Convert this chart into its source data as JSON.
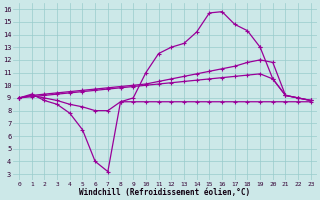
{
  "xlabel": "Windchill (Refroidissement éolien,°C)",
  "background_color": "#cce8e8",
  "grid_color": "#99cccc",
  "line_color": "#990099",
  "x_values": [
    0,
    1,
    2,
    3,
    4,
    5,
    6,
    7,
    8,
    9,
    10,
    11,
    12,
    13,
    14,
    15,
    16,
    17,
    18,
    19,
    20,
    21,
    22,
    23
  ],
  "line_dip_y": [
    9.0,
    9.3,
    8.8,
    8.5,
    7.8,
    6.5,
    4.0,
    3.2,
    8.7,
    8.7,
    8.7,
    8.7,
    8.7,
    8.7,
    8.7,
    8.7,
    8.7,
    8.7,
    8.7,
    8.7,
    8.7,
    8.7,
    8.7,
    8.7
  ],
  "line_peak_y": [
    9.0,
    9.2,
    9.0,
    8.8,
    8.5,
    8.3,
    8.0,
    8.0,
    8.7,
    9.0,
    11.0,
    12.5,
    13.0,
    13.3,
    14.2,
    15.7,
    15.8,
    14.8,
    14.3,
    13.0,
    null,
    null,
    null,
    null
  ],
  "line_mid_y": [
    9.0,
    9.2,
    9.3,
    9.4,
    9.5,
    9.6,
    9.7,
    9.8,
    9.9,
    10.0,
    10.1,
    10.3,
    10.5,
    10.7,
    10.9,
    11.1,
    11.3,
    11.5,
    11.8,
    12.0,
    null,
    null,
    null,
    null
  ],
  "line_low_y": [
    9.0,
    9.1,
    9.2,
    9.3,
    9.4,
    9.5,
    9.6,
    9.7,
    9.8,
    9.9,
    10.0,
    10.1,
    10.2,
    10.3,
    10.4,
    10.5,
    10.6,
    10.7,
    10.8,
    10.9,
    10.5,
    9.2,
    9.0,
    8.8
  ],
  "line_end_x": [
    19,
    20,
    21,
    22,
    23
  ],
  "line_peak_end_y": [
    13.0,
    10.5,
    9.2,
    9.0,
    8.8
  ],
  "line_mid_end_y": [
    12.0,
    11.8,
    9.2,
    9.0,
    8.8
  ],
  "ylim": [
    3,
    16
  ],
  "xlim": [
    0,
    23
  ],
  "yticks": [
    3,
    4,
    5,
    6,
    7,
    8,
    9,
    10,
    11,
    12,
    13,
    14,
    15,
    16
  ],
  "xticks": [
    0,
    1,
    2,
    3,
    4,
    5,
    6,
    7,
    8,
    9,
    10,
    11,
    12,
    13,
    14,
    15,
    16,
    17,
    18,
    19,
    20,
    21,
    22,
    23
  ]
}
